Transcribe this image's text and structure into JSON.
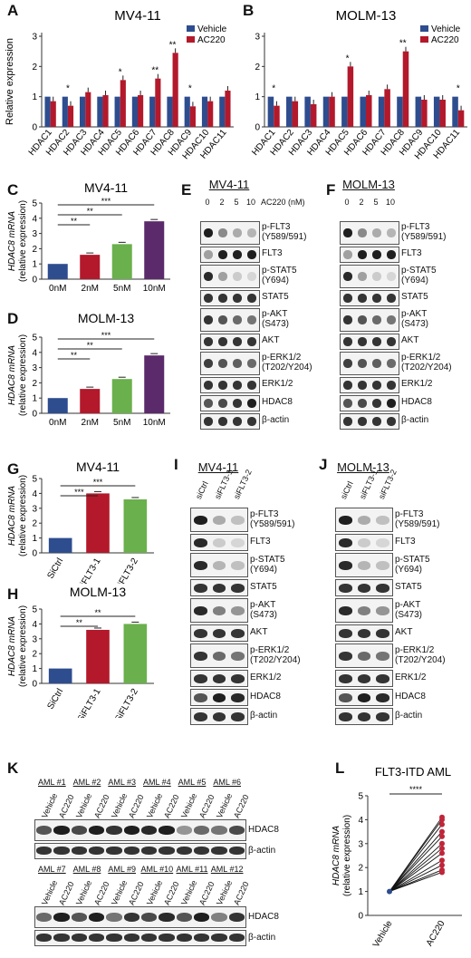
{
  "labels": {
    "A": "A",
    "B": "B",
    "C": "C",
    "D": "D",
    "E": "E",
    "F": "F",
    "G": "G",
    "H": "H",
    "I": "I",
    "J": "J",
    "K": "K",
    "L": "L"
  },
  "legend": {
    "vehicle": "Vehicle",
    "ac220": "AC220",
    "vehicle_color": "#2e4d8f",
    "ac220_color": "#b3192b"
  },
  "chart_data": [
    {
      "id": "A",
      "type": "bar",
      "title": "MV4-11",
      "ylabel": "Relative expression",
      "ylim": [
        0,
        3
      ],
      "categories": [
        "HDAC1",
        "HDAC2",
        "HDAC3",
        "HDAC4",
        "HDAC5",
        "HDAC6",
        "HDAC7",
        "HDAC8",
        "HDAC9",
        "HDAC10",
        "HDAC11"
      ],
      "series": [
        {
          "name": "Vehicle",
          "values": [
            1,
            1,
            1,
            1,
            1,
            1,
            1,
            1,
            1,
            1,
            1
          ]
        },
        {
          "name": "AC220",
          "values": [
            0.85,
            0.7,
            1.15,
            1.05,
            1.55,
            1.05,
            1.6,
            2.45,
            0.68,
            0.85,
            1.2
          ]
        }
      ],
      "sig": [
        "",
        "*",
        "",
        "",
        "*",
        "",
        "**",
        "**",
        "*",
        "",
        ""
      ]
    },
    {
      "id": "B",
      "type": "bar",
      "title": "MOLM-13",
      "ylabel": "",
      "ylim": [
        0,
        3
      ],
      "categories": [
        "HDAC1",
        "HDAC2",
        "HDAC3",
        "HDAC4",
        "HDAC5",
        "HDAC6",
        "HDAC7",
        "HDAC8",
        "HDAC9",
        "HDAC10",
        "HDAC11"
      ],
      "series": [
        {
          "name": "Vehicle",
          "values": [
            1,
            1,
            1,
            1,
            1,
            1,
            1,
            1,
            1,
            1,
            1
          ]
        },
        {
          "name": "AC220",
          "values": [
            0.7,
            0.85,
            0.75,
            1.0,
            2.0,
            1.05,
            1.25,
            2.5,
            0.9,
            0.9,
            0.55
          ]
        }
      ],
      "sig": [
        "*",
        "",
        "",
        "",
        "*",
        "",
        "",
        "**",
        "",
        "",
        "*"
      ]
    },
    {
      "id": "C",
      "type": "bar",
      "title": "MV4-11",
      "ylabel": "HDAC8 mRNA (relative expression)",
      "ylim": [
        0,
        5
      ],
      "categories": [
        "0nM",
        "2nM",
        "5nM",
        "10nM"
      ],
      "values": [
        1,
        1.6,
        2.3,
        3.8
      ],
      "colors": [
        "#2e4d8f",
        "#b3192b",
        "#6ab04c",
        "#5b2a6b"
      ],
      "comparisons": [
        {
          "to": 1,
          "label": "**"
        },
        {
          "to": 2,
          "label": "**"
        },
        {
          "to": 3,
          "label": "***"
        }
      ]
    },
    {
      "id": "D",
      "type": "bar",
      "title": "MOLM-13",
      "ylabel": "HDAC8 mRNA (relative expression)",
      "ylim": [
        0,
        5
      ],
      "categories": [
        "0nM",
        "2nM",
        "5nM",
        "10nM"
      ],
      "values": [
        1,
        1.6,
        2.25,
        3.8
      ],
      "colors": [
        "#2e4d8f",
        "#b3192b",
        "#6ab04c",
        "#5b2a6b"
      ],
      "comparisons": [
        {
          "to": 1,
          "label": "**"
        },
        {
          "to": 2,
          "label": "**"
        },
        {
          "to": 3,
          "label": "***"
        }
      ]
    },
    {
      "id": "G",
      "type": "bar",
      "title": "MV4-11",
      "ylabel": "HDAC8 mRNA (relative expression)",
      "ylim": [
        0,
        5
      ],
      "categories": [
        "SiCtrl",
        "SiFLT3-1",
        "SiFLT3-2"
      ],
      "values": [
        1,
        4.0,
        3.6
      ],
      "colors": [
        "#2e4d8f",
        "#b3192b",
        "#6ab04c"
      ],
      "comparisons": [
        {
          "to": 1,
          "label": "***"
        },
        {
          "to": 2,
          "label": "***"
        }
      ]
    },
    {
      "id": "H",
      "type": "bar",
      "title": "MOLM-13",
      "ylabel": "HDAC8 mRNA (relative expression)",
      "ylim": [
        0,
        5
      ],
      "categories": [
        "SiCtrl",
        "SiFLT3-1",
        "SiFLT3-2"
      ],
      "values": [
        1,
        3.6,
        4.0
      ],
      "colors": [
        "#2e4d8f",
        "#b3192b",
        "#6ab04c"
      ],
      "comparisons": [
        {
          "to": 1,
          "label": "**"
        },
        {
          "to": 2,
          "label": "**"
        }
      ]
    },
    {
      "id": "L",
      "type": "scatter",
      "title": "FLT3-ITD AML",
      "ylabel": "HDAC8 mRNA (relative expression)",
      "ylim": [
        0,
        5
      ],
      "categories": [
        "Vehicle",
        "AC220"
      ],
      "pairs": [
        [
          1,
          4.1
        ],
        [
          1,
          4.0
        ],
        [
          1,
          3.8
        ],
        [
          1,
          3.5
        ],
        [
          1,
          3.3
        ],
        [
          1,
          3.0
        ],
        [
          1,
          2.8
        ],
        [
          1,
          2.6
        ],
        [
          1,
          2.3
        ],
        [
          1,
          2.1
        ],
        [
          1,
          1.9
        ],
        [
          1,
          1.8
        ]
      ],
      "sig": "****"
    }
  ],
  "blotsEF": {
    "E_title": "MV4-11",
    "F_title": "MOLM-13",
    "conc_label": "AC220 (nM)",
    "conc": [
      "0",
      "2",
      "5",
      "10"
    ],
    "rows": [
      "p-FLT3\n(Y589/591)",
      "FLT3",
      "p-STAT5\n(Y694)",
      "STAT5",
      "p-AKT\n(S473)",
      "AKT",
      "p-ERK1/2\n(T202/Y204)",
      "ERK1/2",
      "HDAC8",
      "β-actin"
    ]
  },
  "blotsIJ": {
    "I_title": "MV4-11",
    "J_title": "MOLM-13",
    "lanes": [
      "siCtrl",
      "siFLT3-1",
      "siFLT3-2"
    ],
    "rows": [
      "p-FLT3\n(Y589/591)",
      "FLT3",
      "p-STAT5\n(Y694)",
      "STAT5",
      "p-AKT\n(S473)",
      "AKT",
      "p-ERK1/2\n(T202/Y204)",
      "ERK1/2",
      "HDAC8",
      "β-actin"
    ]
  },
  "blotsK": {
    "top_groups": [
      "AML #1",
      "AML #2",
      "AML #3",
      "AML #4",
      "AML #5",
      "AML #6"
    ],
    "bottom_groups": [
      "AML #7",
      "AML #8",
      "AML #9",
      "AML #10",
      "AML #11",
      "AML #12"
    ],
    "lanes": [
      "Vehicle",
      "AC220"
    ],
    "rows": [
      "HDAC8",
      "β-actin"
    ]
  }
}
